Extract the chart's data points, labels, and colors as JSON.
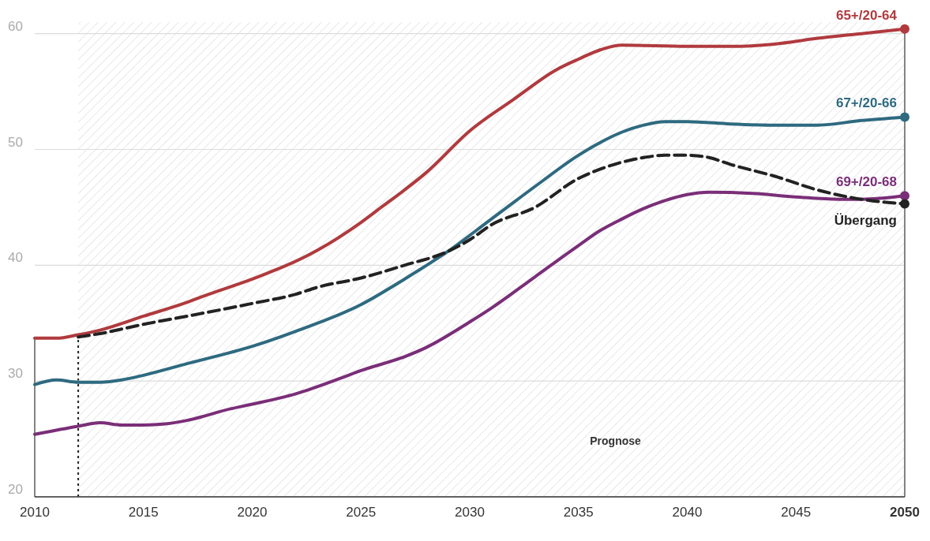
{
  "chart_data": {
    "type": "line",
    "xlim": [
      2010,
      2050
    ],
    "ylim": [
      20,
      61
    ],
    "xticks": [
      2010,
      2015,
      2020,
      2025,
      2030,
      2035,
      2040,
      2045,
      2050
    ],
    "yticks": [
      20,
      30,
      40,
      50,
      60
    ],
    "grid": "y",
    "ref_lines": [
      {
        "axis": "x",
        "value": 2012,
        "line_style": "dotted",
        "color": "#222222"
      }
    ],
    "bands": [
      {
        "axis": "x",
        "from": 2012,
        "to": 2050,
        "label": "Prognose"
      }
    ],
    "series": [
      {
        "name": "65+/20-64",
        "color": "#b03a3e",
        "x": [
          2010,
          2011,
          2012,
          2013,
          2015,
          2017,
          2018,
          2020,
          2023,
          2025,
          2026,
          2027,
          2028,
          2030,
          2032,
          2034,
          2035,
          2036,
          2037,
          2040,
          2042,
          2044,
          2046,
          2048,
          2050
        ],
        "values": [
          33.7,
          33.7,
          34.0,
          34.4,
          35.6,
          36.8,
          37.5,
          38.8,
          41.3,
          43.7,
          45.1,
          46.5,
          48.0,
          51.6,
          54.3,
          56.9,
          57.8,
          58.6,
          59.0,
          58.9,
          58.9,
          59.1,
          59.6,
          60.0,
          60.4
        ]
      },
      {
        "name": "67+/20-66",
        "color": "#2e6a80",
        "x": [
          2010,
          2011,
          2012,
          2013,
          2014,
          2015,
          2017,
          2020,
          2022,
          2025,
          2027,
          2029,
          2031,
          2033,
          2035,
          2036,
          2037,
          2038,
          2039,
          2040,
          2042,
          2044,
          2046,
          2048,
          2050
        ],
        "values": [
          29.7,
          30.1,
          29.9,
          29.9,
          30.1,
          30.5,
          31.5,
          33.0,
          34.3,
          36.6,
          38.8,
          41.2,
          44.0,
          46.8,
          49.5,
          50.6,
          51.5,
          52.1,
          52.4,
          52.4,
          52.2,
          52.1,
          52.1,
          52.5,
          52.8
        ]
      },
      {
        "name": "69+/20-68",
        "color": "#7a2e78",
        "x": [
          2010,
          2012,
          2013,
          2014,
          2015,
          2016,
          2017,
          2019,
          2020,
          2022,
          2024,
          2025,
          2027,
          2028,
          2030,
          2031,
          2033,
          2035,
          2036,
          2037,
          2038,
          2039,
          2040,
          2041,
          2043,
          2045,
          2047,
          2048,
          2050
        ],
        "values": [
          25.4,
          26.1,
          26.4,
          26.2,
          26.2,
          26.3,
          26.6,
          27.6,
          28.0,
          28.9,
          30.2,
          30.9,
          32.1,
          32.9,
          35.1,
          36.3,
          39.0,
          41.7,
          43.0,
          44.0,
          44.9,
          45.6,
          46.1,
          46.3,
          46.2,
          45.9,
          45.7,
          45.7,
          46.0
        ]
      },
      {
        "name": "Übergang",
        "color": "#222222",
        "line_style": "dashed",
        "x": [
          2012,
          2013,
          2015,
          2017,
          2020,
          2022,
          2023,
          2025,
          2027,
          2029,
          2030,
          2031,
          2033,
          2035,
          2036,
          2037,
          2038,
          2039,
          2040,
          2041,
          2042,
          2044,
          2046,
          2048,
          2050
        ],
        "values": [
          33.8,
          34.1,
          34.9,
          35.6,
          36.7,
          37.5,
          38.1,
          38.9,
          40.0,
          41.2,
          42.2,
          43.5,
          45.0,
          47.5,
          48.3,
          48.9,
          49.3,
          49.5,
          49.5,
          49.3,
          48.7,
          47.7,
          46.5,
          45.7,
          45.3
        ]
      }
    ]
  }
}
